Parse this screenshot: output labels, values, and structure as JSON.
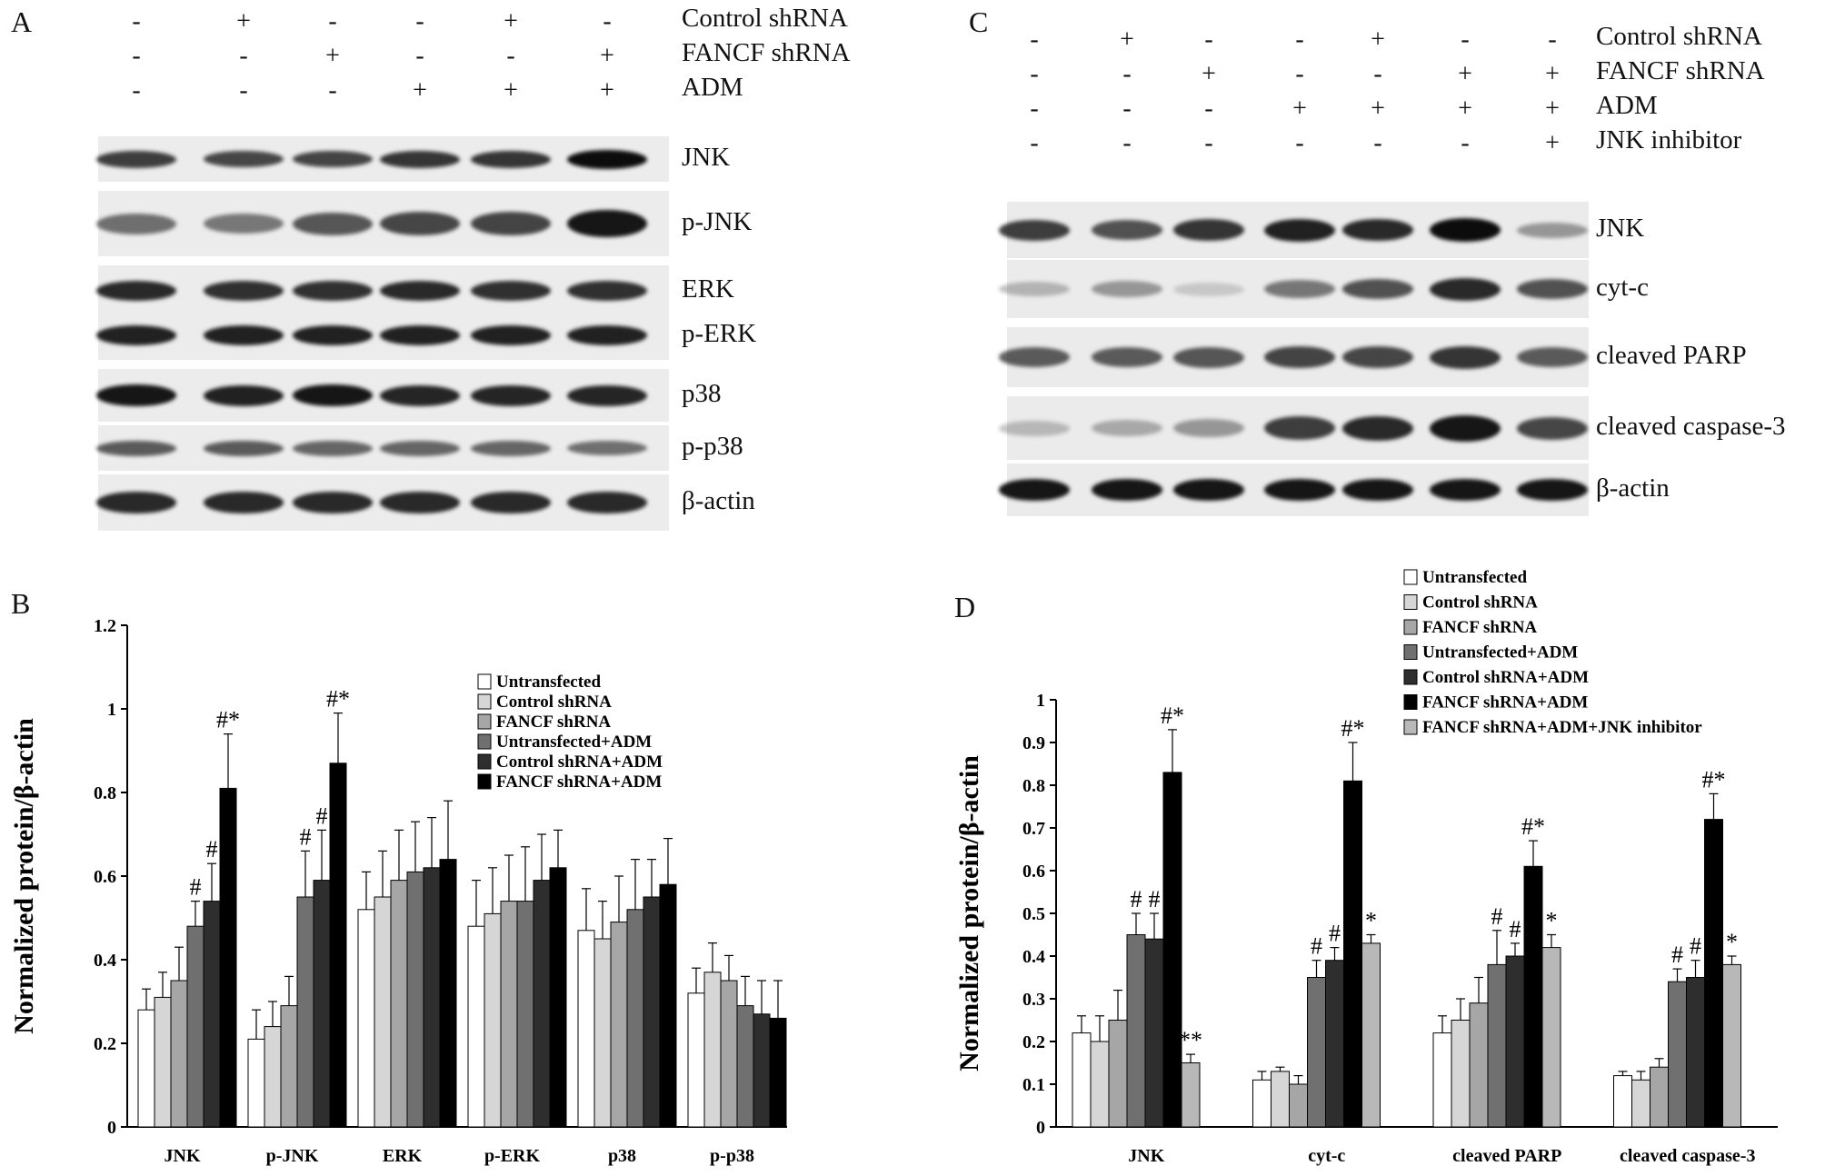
{
  "panels": {
    "A": {
      "label": "A",
      "conditions": [
        {
          "name": "Control shRNA",
          "signs": [
            "-",
            "+",
            "-",
            "-",
            "+",
            "-"
          ]
        },
        {
          "name": "FANCF shRNA",
          "signs": [
            "-",
            "-",
            "+",
            "-",
            "-",
            "+"
          ]
        },
        {
          "name": "ADM",
          "signs": [
            "-",
            "-",
            "-",
            "+",
            "+",
            "+"
          ]
        }
      ],
      "blots": [
        {
          "name": "JNK",
          "intensity": [
            0.75,
            0.7,
            0.72,
            0.8,
            0.8,
            1.0
          ]
        },
        {
          "name": "p-JNK",
          "intensity": [
            0.5,
            0.45,
            0.62,
            0.7,
            0.72,
            0.95
          ]
        },
        {
          "name": "ERK",
          "intensity": [
            0.85,
            0.82,
            0.82,
            0.85,
            0.82,
            0.82
          ]
        },
        {
          "name": "p-ERK",
          "intensity": [
            0.9,
            0.9,
            0.9,
            0.9,
            0.9,
            0.9
          ]
        },
        {
          "name": "p38",
          "intensity": [
            0.95,
            0.9,
            0.95,
            0.88,
            0.88,
            0.88
          ]
        },
        {
          "name": "p-p38",
          "intensity": [
            0.6,
            0.6,
            0.55,
            0.55,
            0.55,
            0.5
          ]
        },
        {
          "name": "β-actin",
          "intensity": [
            0.85,
            0.85,
            0.85,
            0.85,
            0.85,
            0.85
          ]
        }
      ]
    },
    "B": {
      "label": "B"
    },
    "C": {
      "label": "C",
      "conditions": [
        {
          "name": "Control shRNA",
          "signs": [
            "-",
            "+",
            "-",
            "-",
            "+",
            "-",
            "-"
          ]
        },
        {
          "name": "FANCF shRNA",
          "signs": [
            "-",
            "-",
            "+",
            "-",
            "-",
            "+",
            "+"
          ]
        },
        {
          "name": "ADM",
          "signs": [
            "-",
            "-",
            "-",
            "+",
            "+",
            "+",
            "+"
          ]
        },
        {
          "name": "JNK inhibitor",
          "signs": [
            "-",
            "-",
            "-",
            "-",
            "-",
            "-",
            "+"
          ]
        }
      ],
      "blots": [
        {
          "name": "JNK",
          "intensity": [
            0.75,
            0.65,
            0.8,
            0.9,
            0.85,
            1.0,
            0.3
          ]
        },
        {
          "name": "cyt-c",
          "intensity": [
            0.15,
            0.3,
            0.05,
            0.45,
            0.65,
            0.85,
            0.65
          ]
        },
        {
          "name": "cleaved PARP",
          "intensity": [
            0.6,
            0.6,
            0.62,
            0.72,
            0.7,
            0.8,
            0.6
          ]
        },
        {
          "name": "cleaved  caspase-3",
          "intensity": [
            0.12,
            0.2,
            0.3,
            0.75,
            0.85,
            0.95,
            0.7
          ]
        },
        {
          "name": "β-actin",
          "intensity": [
            0.95,
            0.95,
            0.95,
            0.95,
            0.95,
            0.95,
            0.95
          ]
        }
      ]
    },
    "D": {
      "label": "D"
    }
  },
  "chart_data": [
    {
      "type": "bar",
      "panel": "B",
      "title": "",
      "xlabel": "",
      "ylabel": "Normalized protein/β-actin",
      "ylim": [
        0,
        1.2
      ],
      "yticks": [
        "0",
        "0.2",
        "0.4",
        "0.6",
        "0.8",
        "1",
        "1.2"
      ],
      "categories": [
        "JNK",
        "p-JNK",
        "ERK",
        "p-ERK",
        "p38",
        "p-p38"
      ],
      "legend_position": "top-right",
      "series": [
        {
          "name": "Untransfected",
          "color": "#ffffff",
          "values": [
            0.28,
            0.21,
            0.52,
            0.48,
            0.47,
            0.32
          ],
          "errors": [
            0.05,
            0.07,
            0.09,
            0.11,
            0.1,
            0.06
          ],
          "annotations": [
            "",
            "",
            "",
            "",
            "",
            ""
          ]
        },
        {
          "name": "Control shRNA",
          "color": "#d6d6d6",
          "values": [
            0.31,
            0.24,
            0.55,
            0.51,
            0.45,
            0.37
          ],
          "errors": [
            0.06,
            0.06,
            0.11,
            0.11,
            0.09,
            0.07
          ],
          "annotations": [
            "",
            "",
            "",
            "",
            "",
            ""
          ]
        },
        {
          "name": "FANCF shRNA",
          "color": "#a6a6a6",
          "values": [
            0.35,
            0.29,
            0.59,
            0.54,
            0.49,
            0.35
          ],
          "errors": [
            0.08,
            0.07,
            0.12,
            0.11,
            0.11,
            0.06
          ],
          "annotations": [
            "",
            "",
            "",
            "",
            "",
            ""
          ]
        },
        {
          "name": "Untransfected+ADM",
          "color": "#707070",
          "values": [
            0.48,
            0.55,
            0.61,
            0.54,
            0.52,
            0.29
          ],
          "errors": [
            0.06,
            0.11,
            0.12,
            0.13,
            0.12,
            0.07
          ],
          "annotations": [
            "#",
            "#",
            "",
            "",
            "",
            ""
          ]
        },
        {
          "name": "Control shRNA+ADM",
          "color": "#2e2e2e",
          "values": [
            0.54,
            0.59,
            0.62,
            0.59,
            0.55,
            0.27
          ],
          "errors": [
            0.09,
            0.12,
            0.12,
            0.11,
            0.09,
            0.08
          ],
          "annotations": [
            "#",
            "#",
            "",
            "",
            "",
            ""
          ]
        },
        {
          "name": "FANCF shRNA+ADM",
          "color": "#000000",
          "values": [
            0.81,
            0.87,
            0.64,
            0.62,
            0.58,
            0.26
          ],
          "errors": [
            0.13,
            0.12,
            0.14,
            0.09,
            0.11,
            0.09
          ],
          "annotations": [
            "#*",
            "#*",
            "",
            "",
            "",
            ""
          ]
        }
      ]
    },
    {
      "type": "bar",
      "panel": "D",
      "title": "",
      "xlabel": "",
      "ylabel": "Normalized protein/β-actin",
      "ylim": [
        0,
        1
      ],
      "yticks": [
        "0",
        "0.1",
        "0.2",
        "0.3",
        "0.4",
        "0.5",
        "0.6",
        "0.7",
        "0.8",
        "0.9",
        "1"
      ],
      "categories": [
        "JNK",
        "cyt-c",
        "cleaved PARP",
        "cleaved caspase-3"
      ],
      "legend_position": "top",
      "series": [
        {
          "name": "Untransfected",
          "color": "#ffffff",
          "values": [
            0.22,
            0.11,
            0.22,
            0.12
          ],
          "errors": [
            0.04,
            0.02,
            0.04,
            0.01
          ],
          "annotations": [
            "",
            "",
            "",
            ""
          ]
        },
        {
          "name": "Control shRNA",
          "color": "#d6d6d6",
          "values": [
            0.2,
            0.13,
            0.25,
            0.11
          ],
          "errors": [
            0.06,
            0.01,
            0.05,
            0.02
          ],
          "annotations": [
            "",
            "",
            "",
            ""
          ]
        },
        {
          "name": "FANCF shRNA",
          "color": "#a6a6a6",
          "values": [
            0.25,
            0.1,
            0.29,
            0.14
          ],
          "errors": [
            0.07,
            0.02,
            0.06,
            0.02
          ],
          "annotations": [
            "",
            "",
            "",
            ""
          ]
        },
        {
          "name": "Untransfected+ADM",
          "color": "#707070",
          "values": [
            0.45,
            0.35,
            0.38,
            0.34
          ],
          "errors": [
            0.05,
            0.04,
            0.08,
            0.03
          ],
          "annotations": [
            "#",
            "#",
            "#",
            "#"
          ]
        },
        {
          "name": "Control shRNA+ADM",
          "color": "#2e2e2e",
          "values": [
            0.44,
            0.39,
            0.4,
            0.35
          ],
          "errors": [
            0.06,
            0.03,
            0.03,
            0.04
          ],
          "annotations": [
            "#",
            "#",
            "#",
            "#"
          ]
        },
        {
          "name": "FANCF shRNA+ADM",
          "color": "#000000",
          "values": [
            0.83,
            0.81,
            0.61,
            0.72
          ],
          "errors": [
            0.1,
            0.09,
            0.06,
            0.06
          ],
          "annotations": [
            "#*",
            "#*",
            "#*",
            "#*"
          ]
        },
        {
          "name": "FANCF shRNA+ADM+JNK inhibitor",
          "color": "#b8b8b8",
          "values": [
            0.15,
            0.43,
            0.42,
            0.38
          ],
          "errors": [
            0.02,
            0.02,
            0.03,
            0.02
          ],
          "annotations": [
            "**",
            "*",
            "*",
            "*"
          ]
        }
      ]
    }
  ]
}
